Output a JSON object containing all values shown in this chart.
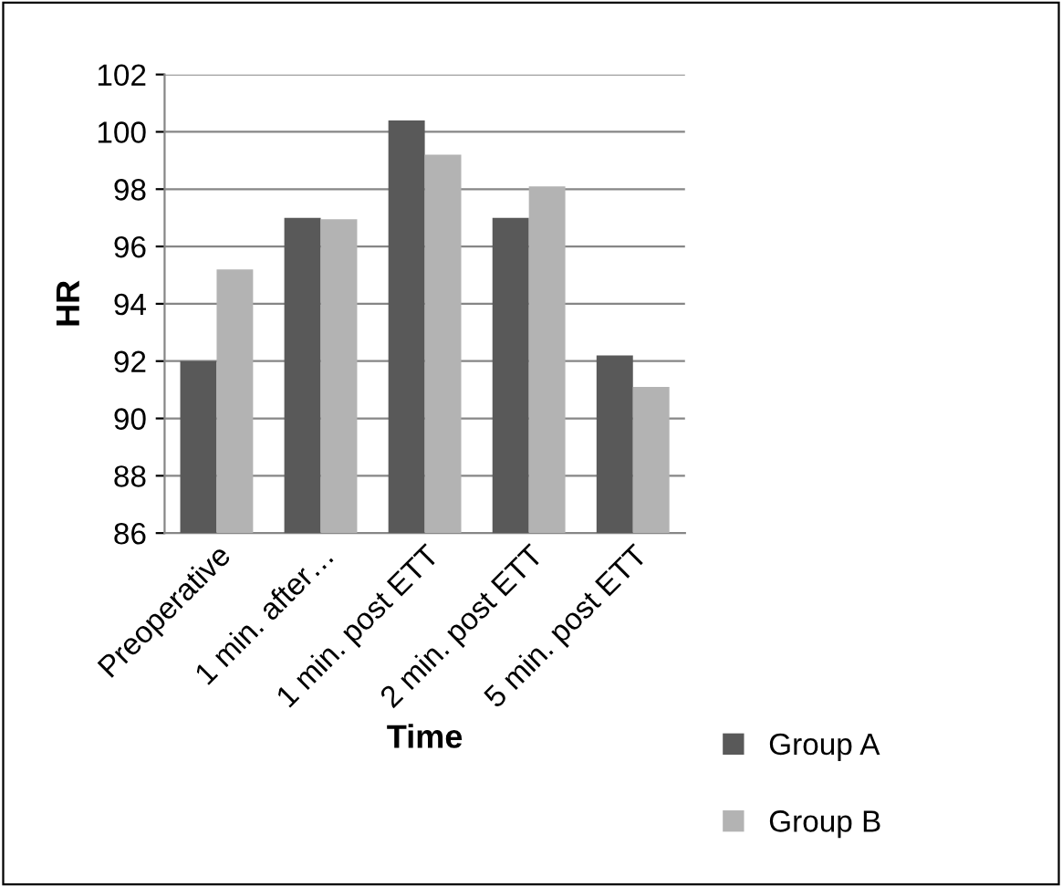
{
  "chart_data": {
    "type": "bar",
    "xlabel": "Time",
    "ylabel": "HR",
    "categories": [
      "Preoperative",
      "1 min. after…",
      "1 min. post ETT",
      "2 min. post ETT",
      "5 min. post ETT"
    ],
    "series": [
      {
        "name": "Group A",
        "color": "#595959",
        "values": [
          92.0,
          97.0,
          100.4,
          97.0,
          92.2
        ]
      },
      {
        "name": "Group B",
        "color": "#b3b3b3",
        "values": [
          95.2,
          96.95,
          99.2,
          98.1,
          91.1
        ]
      }
    ],
    "ylim": [
      86,
      102
    ],
    "yticks": [
      86,
      88,
      90,
      92,
      94,
      96,
      98,
      100,
      102
    ],
    "grid": "y",
    "legend": "right"
  }
}
